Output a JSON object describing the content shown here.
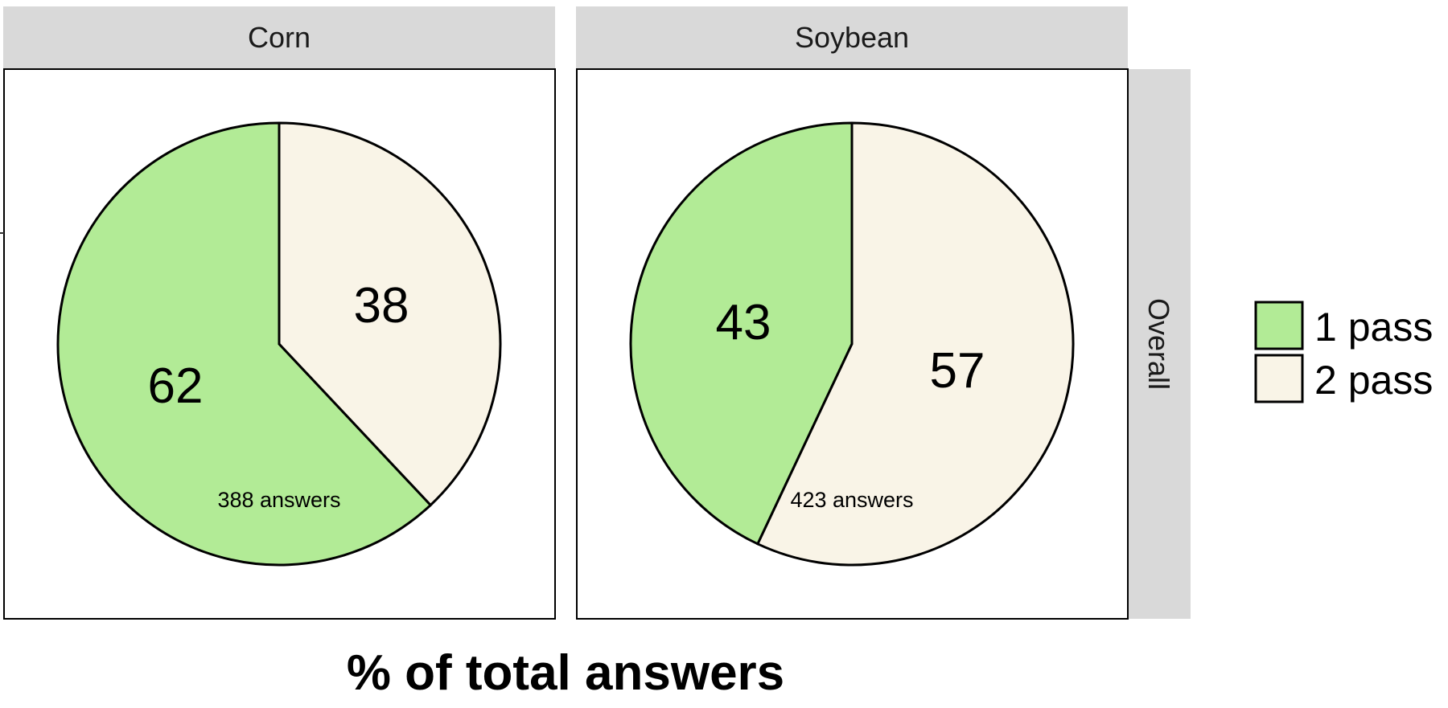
{
  "chart_data": {
    "type": "pie",
    "title": "",
    "xlabel": "% of total answers",
    "row_facet": "Overall",
    "legend": {
      "placement": "right",
      "entries": [
        {
          "label": "1 pass",
          "color": "#b2eb96"
        },
        {
          "label": "2 pass",
          "color": "#f9f4e7"
        }
      ]
    },
    "panels": [
      {
        "facet": "Corn",
        "total_label": "388 answers",
        "slices": [
          {
            "series": "1 pass",
            "value": 62,
            "label": "62"
          },
          {
            "series": "2 pass",
            "value": 38,
            "label": "38"
          }
        ]
      },
      {
        "facet": "Soybean",
        "total_label": "423 answers",
        "slices": [
          {
            "series": "1 pass",
            "value": 43,
            "label": "43"
          },
          {
            "series": "2 pass",
            "value": 57,
            "label": "57"
          }
        ]
      }
    ]
  }
}
